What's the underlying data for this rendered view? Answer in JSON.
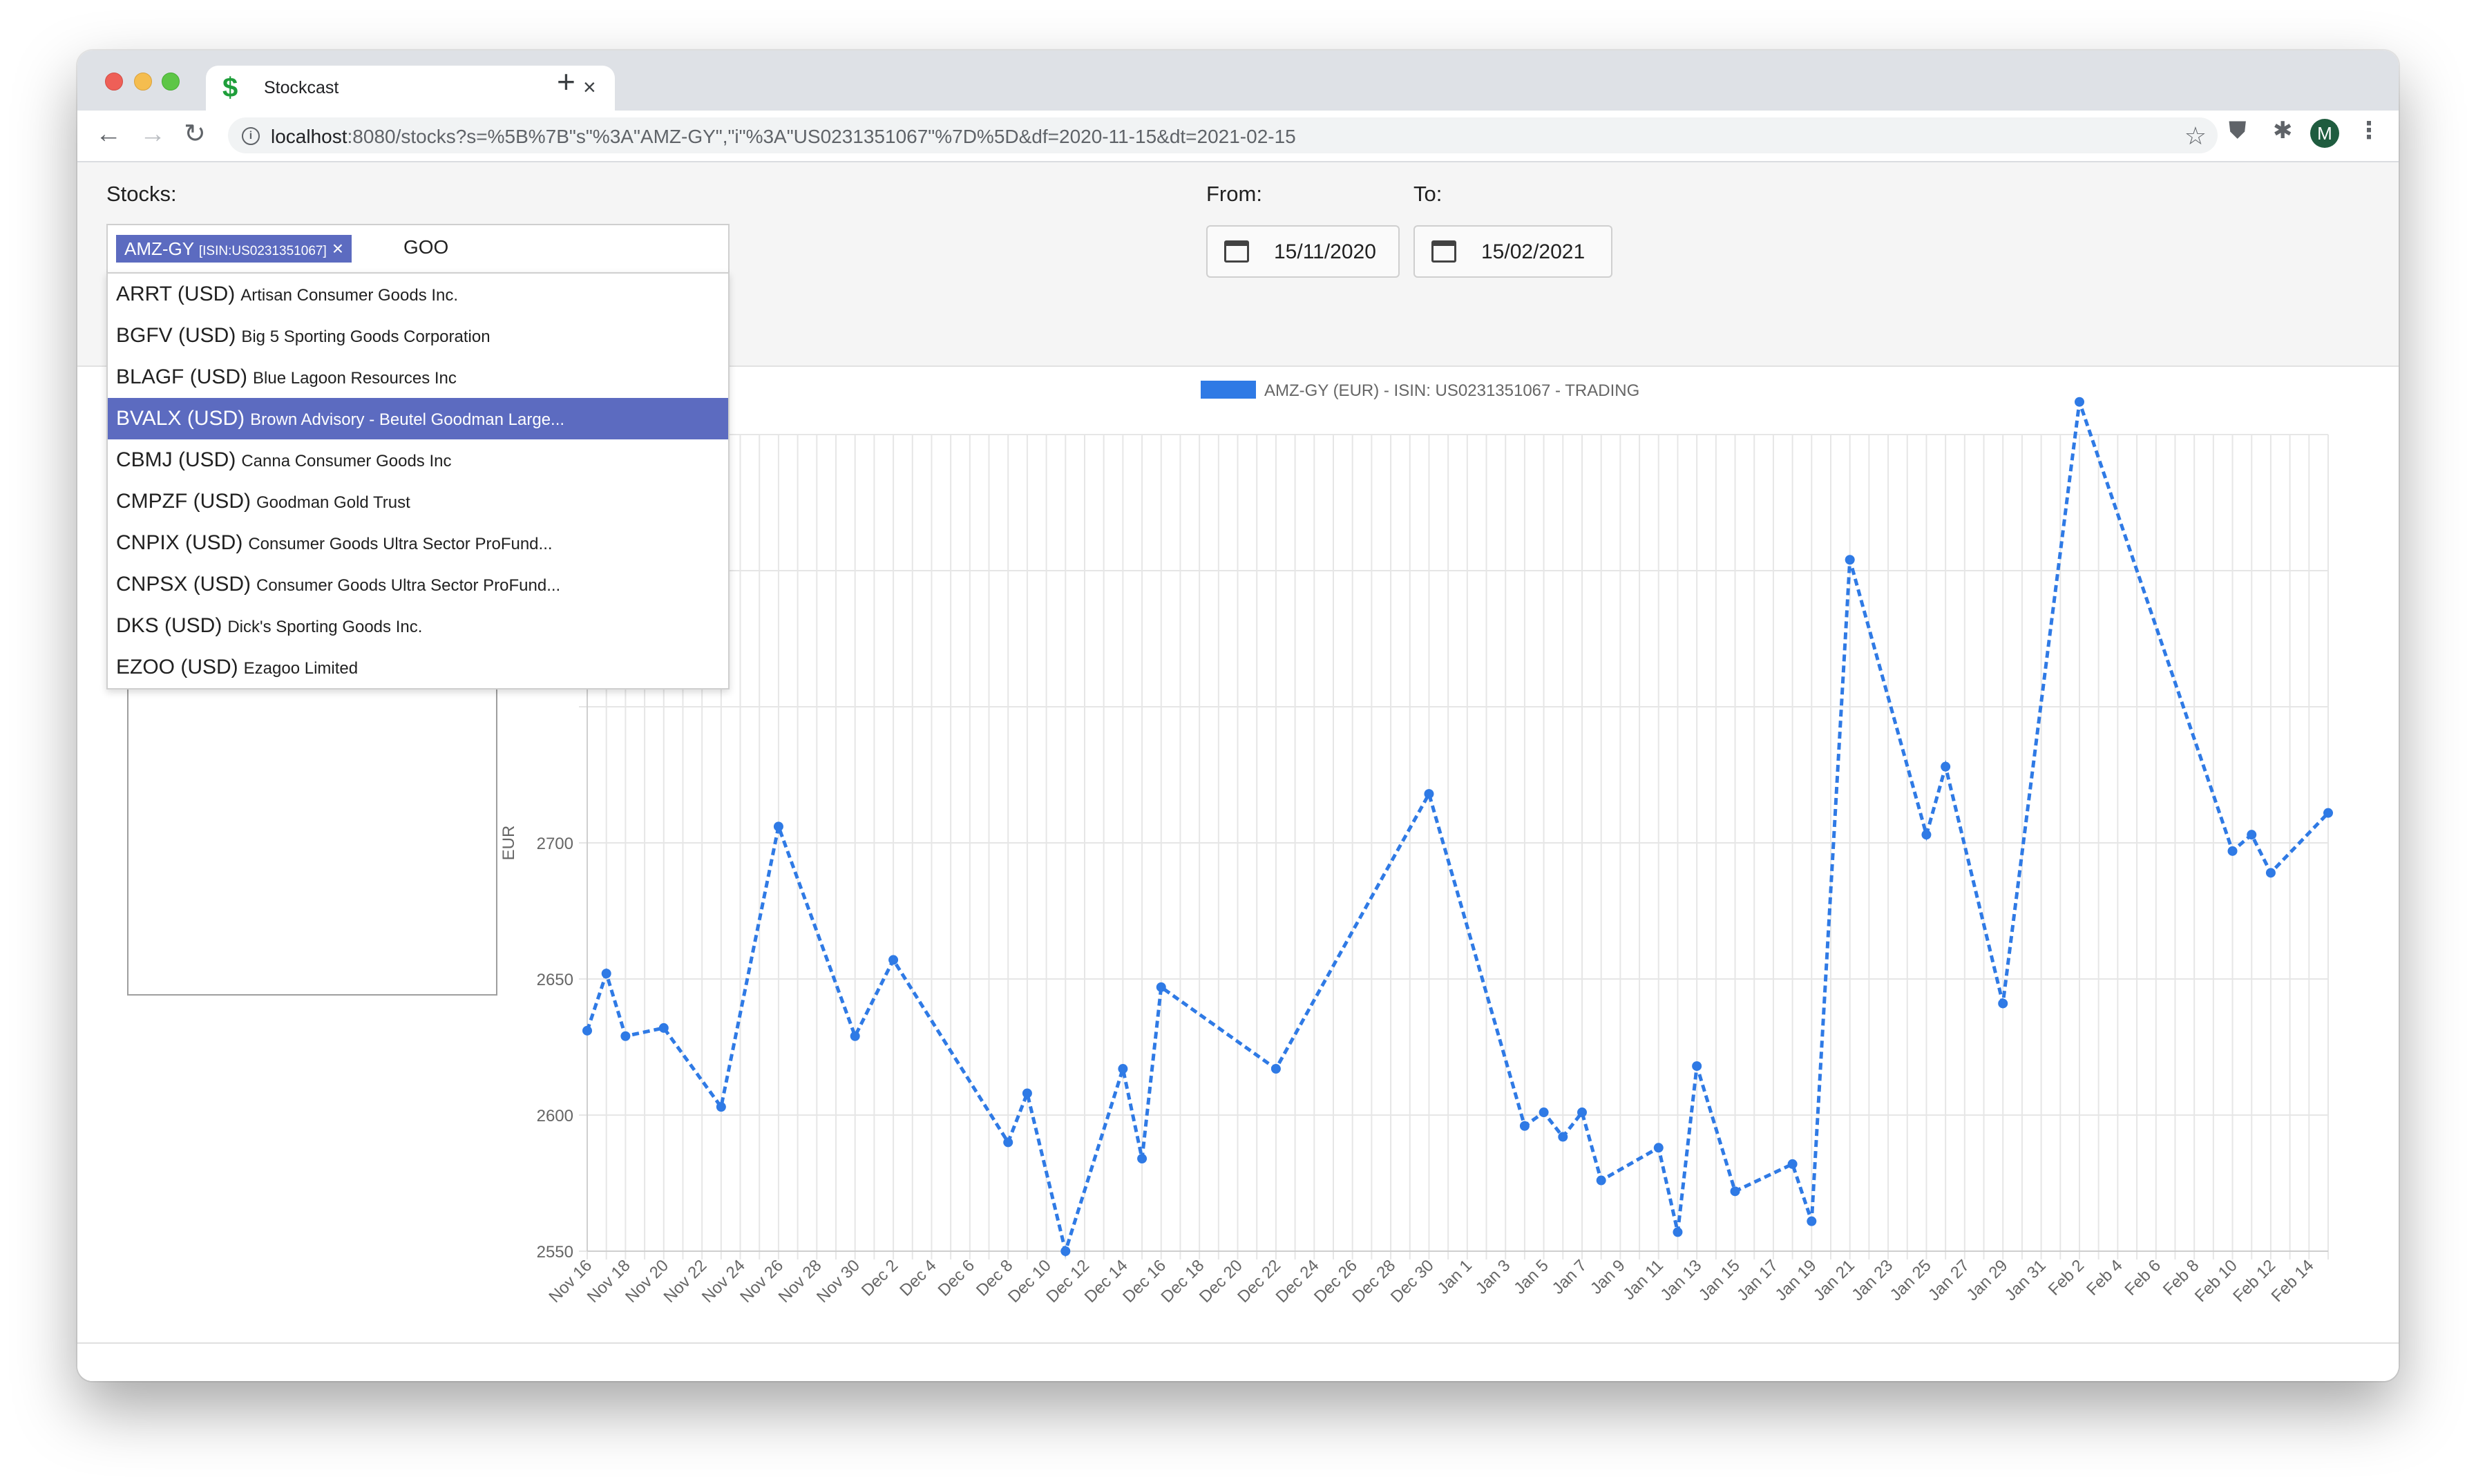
{
  "browser": {
    "tab_title": "Stockcast",
    "tab_favicon": "$",
    "tab_close": "×",
    "new_tab": "+",
    "url_host": "localhost",
    "url_rest": ":8080/stocks?s=%5B%7B\"s\"%3A\"AMZ-GY\",\"i\"%3A\"US0231351067\"%7D%5D&df=2020-11-15&dt=2021-02-15",
    "profile_initial": "M",
    "icons": [
      "back-arrow-icon",
      "forward-arrow-icon",
      "reload-icon",
      "info-icon",
      "star-icon",
      "shield-icon",
      "puzzle-icon",
      "kebab-menu-icon"
    ]
  },
  "controls": {
    "stocks_label": "Stocks:",
    "from_label": "From:",
    "to_label": "To:",
    "from_value": "15/11/2020",
    "to_value": "15/02/2021",
    "selected_chip": {
      "symbol": "AMZ-GY",
      "isin": "[ISIN:US0231351067]",
      "remove": "×"
    },
    "search_text": "GOO"
  },
  "dropdown": {
    "options": [
      {
        "symbol": "ARRT (USD)",
        "name": "Artisan Consumer Goods Inc.",
        "selected": false
      },
      {
        "symbol": "BGFV (USD)",
        "name": "Big 5 Sporting Goods Corporation",
        "selected": false
      },
      {
        "symbol": "BLAGF (USD)",
        "name": "Blue Lagoon Resources Inc",
        "selected": false
      },
      {
        "symbol": "BVALX (USD)",
        "name": "Brown Advisory - Beutel Goodman Large...",
        "selected": true
      },
      {
        "symbol": "CBMJ (USD)",
        "name": "Canna Consumer Goods Inc",
        "selected": false
      },
      {
        "symbol": "CMPZF (USD)",
        "name": "Goodman Gold Trust",
        "selected": false
      },
      {
        "symbol": "CNPIX (USD)",
        "name": "Consumer Goods Ultra Sector ProFund...",
        "selected": false
      },
      {
        "symbol": "CNPSX (USD)",
        "name": "Consumer Goods Ultra Sector ProFund...",
        "selected": false
      },
      {
        "symbol": "DKS (USD)",
        "name": "Dick's Sporting Goods Inc.",
        "selected": false
      },
      {
        "symbol": "EZOO (USD)",
        "name": "Ezagoo Limited",
        "selected": false
      }
    ]
  },
  "chart_data": {
    "type": "line",
    "legend": "AMZ-GY (EUR) - ISIN: US0231351067 - TRADING",
    "legend_position": "top",
    "ylabel": "EUR",
    "xlabel": "",
    "ylim": [
      2550,
      2850
    ],
    "yticks": [
      2550,
      2600,
      2650,
      2700
    ],
    "grid": true,
    "color": "#2f7ae5",
    "line_style": "dashed",
    "x_start": "Nov 16",
    "x_end": "Feb 15",
    "x_tick_labels": [
      "Nov 16",
      "Nov 18",
      "Nov 20",
      "Nov 22",
      "Nov 24",
      "Nov 26",
      "Nov 28",
      "Nov 30",
      "Dec 2",
      "Dec 4",
      "Dec 6",
      "Dec 8",
      "Dec 10",
      "Dec 12",
      "Dec 14",
      "Dec 16",
      "Dec 18",
      "Dec 20",
      "Dec 22",
      "Dec 24",
      "Dec 26",
      "Dec 28",
      "Dec 30",
      "Jan 1",
      "Jan 3",
      "Jan 5",
      "Jan 7",
      "Jan 9",
      "Jan 11",
      "Jan 13",
      "Jan 15",
      "Jan 17",
      "Jan 19",
      "Jan 21",
      "Jan 23",
      "Jan 25",
      "Jan 27",
      "Jan 29",
      "Jan 31",
      "Feb 2",
      "Feb 4",
      "Feb 6",
      "Feb 8",
      "Feb 10",
      "Feb 12",
      "Feb 14"
    ],
    "series": [
      {
        "points": [
          {
            "x": "Nov 16",
            "y": 2631
          },
          {
            "x": "Nov 17",
            "y": 2652
          },
          {
            "x": "Nov 18",
            "y": 2629
          },
          {
            "x": "Nov 20",
            "y": 2632
          },
          {
            "x": "Nov 23",
            "y": 2603
          },
          {
            "x": "Nov 26",
            "y": 2706
          },
          {
            "x": "Nov 30",
            "y": 2629
          },
          {
            "x": "Dec 2",
            "y": 2657
          },
          {
            "x": "Dec 8",
            "y": 2590
          },
          {
            "x": "Dec 9",
            "y": 2608
          },
          {
            "x": "Dec 11",
            "y": 2550
          },
          {
            "x": "Dec 14",
            "y": 2617
          },
          {
            "x": "Dec 15",
            "y": 2584
          },
          {
            "x": "Dec 16",
            "y": 2647
          },
          {
            "x": "Dec 22",
            "y": 2617
          },
          {
            "x": "Dec 30",
            "y": 2718
          },
          {
            "x": "Jan 4",
            "y": 2596
          },
          {
            "x": "Jan 5",
            "y": 2601
          },
          {
            "x": "Jan 6",
            "y": 2592
          },
          {
            "x": "Jan 7",
            "y": 2601
          },
          {
            "x": "Jan 8",
            "y": 2576
          },
          {
            "x": "Jan 11",
            "y": 2588
          },
          {
            "x": "Jan 12",
            "y": 2557
          },
          {
            "x": "Jan 13",
            "y": 2618
          },
          {
            "x": "Jan 15",
            "y": 2572
          },
          {
            "x": "Jan 18",
            "y": 2582
          },
          {
            "x": "Jan 19",
            "y": 2561
          },
          {
            "x": "Jan 21",
            "y": 2804
          },
          {
            "x": "Jan 25",
            "y": 2703
          },
          {
            "x": "Jan 26",
            "y": 2728
          },
          {
            "x": "Jan 29",
            "y": 2641
          },
          {
            "x": "Feb 2",
            "y": 2862
          },
          {
            "x": "Feb 10",
            "y": 2697
          },
          {
            "x": "Feb 11",
            "y": 2703
          },
          {
            "x": "Feb 12",
            "y": 2689
          },
          {
            "x": "Feb 15",
            "y": 2711
          }
        ]
      }
    ]
  }
}
